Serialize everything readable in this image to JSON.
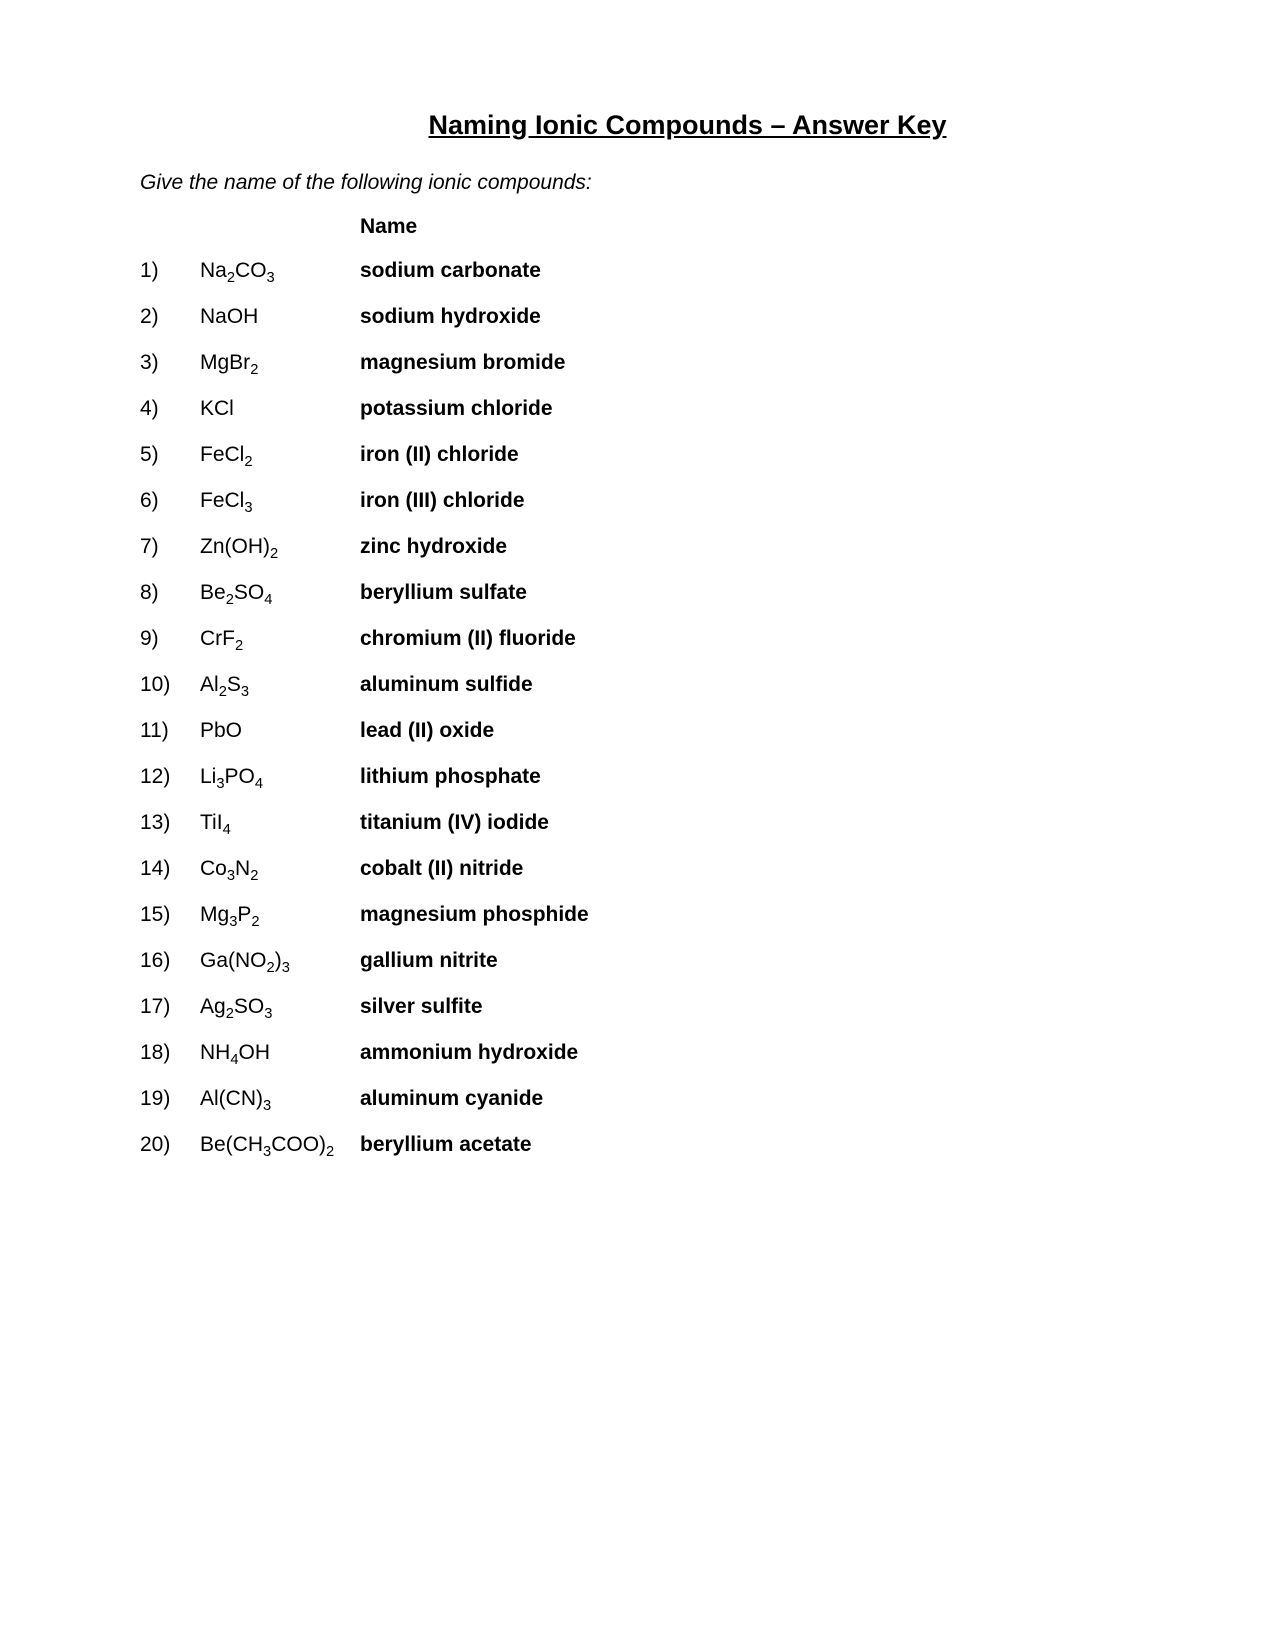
{
  "title": "Naming Ionic Compounds – Answer Key",
  "instruction": "Give the name of the following ionic compounds:",
  "name_header": "Name",
  "fontsize_title": 27,
  "fontsize_body": 21,
  "background_color": "#ffffff",
  "text_color": "#000000",
  "compounds": [
    {
      "num": "1)",
      "formula_html": "Na<sub>2</sub>CO<sub>3</sub>",
      "name": "sodium carbonate"
    },
    {
      "num": "2)",
      "formula_html": "NaOH",
      "name": "sodium hydroxide"
    },
    {
      "num": "3)",
      "formula_html": "MgBr<sub>2</sub>",
      "name": "magnesium bromide"
    },
    {
      "num": "4)",
      "formula_html": "KCl",
      "name": "potassium chloride"
    },
    {
      "num": "5)",
      "formula_html": "FeCl<sub>2</sub>",
      "name": "iron (II) chloride"
    },
    {
      "num": "6)",
      "formula_html": "FeCl<sub>3</sub>",
      "name": "iron (III) chloride"
    },
    {
      "num": "7)",
      "formula_html": "Zn(OH)<sub>2</sub>",
      "name": "zinc hydroxide"
    },
    {
      "num": "8)",
      "formula_html": "Be<sub>2</sub>SO<sub>4</sub>",
      "name": "beryllium sulfate"
    },
    {
      "num": "9)",
      "formula_html": "CrF<sub>2</sub>",
      "name": "chromium (II) fluoride"
    },
    {
      "num": "10)",
      "formula_html": "Al<sub>2</sub>S<sub>3</sub>",
      "name": "aluminum sulfide"
    },
    {
      "num": "11)",
      "formula_html": "PbO",
      "name": "lead (II) oxide"
    },
    {
      "num": "12)",
      "formula_html": "Li<sub>3</sub>PO<sub>4</sub>",
      "name": "lithium phosphate"
    },
    {
      "num": "13)",
      "formula_html": "TiI<sub>4</sub>",
      "name": "titanium (IV) iodide"
    },
    {
      "num": "14)",
      "formula_html": "Co<sub>3</sub>N<sub>2</sub>",
      "name": "cobalt (II) nitride"
    },
    {
      "num": "15)",
      "formula_html": "Mg<sub>3</sub>P<sub>2</sub>",
      "name": "magnesium phosphide"
    },
    {
      "num": "16)",
      "formula_html": "Ga(NO<sub>2</sub>)<sub>3</sub>",
      "name": "gallium nitrite"
    },
    {
      "num": "17)",
      "formula_html": "Ag<sub>2</sub>SO<sub>3</sub>",
      "name": "silver sulfite"
    },
    {
      "num": "18)",
      "formula_html": "NH<sub>4</sub>OH",
      "name": "ammonium hydroxide"
    },
    {
      "num": "19)",
      "formula_html": "Al(CN)<sub>3</sub>",
      "name": "aluminum cyanide"
    },
    {
      "num": "20)",
      "formula_html": "Be(CH<sub>3</sub>COO)<sub>2</sub>",
      "name": "beryllium acetate"
    }
  ]
}
